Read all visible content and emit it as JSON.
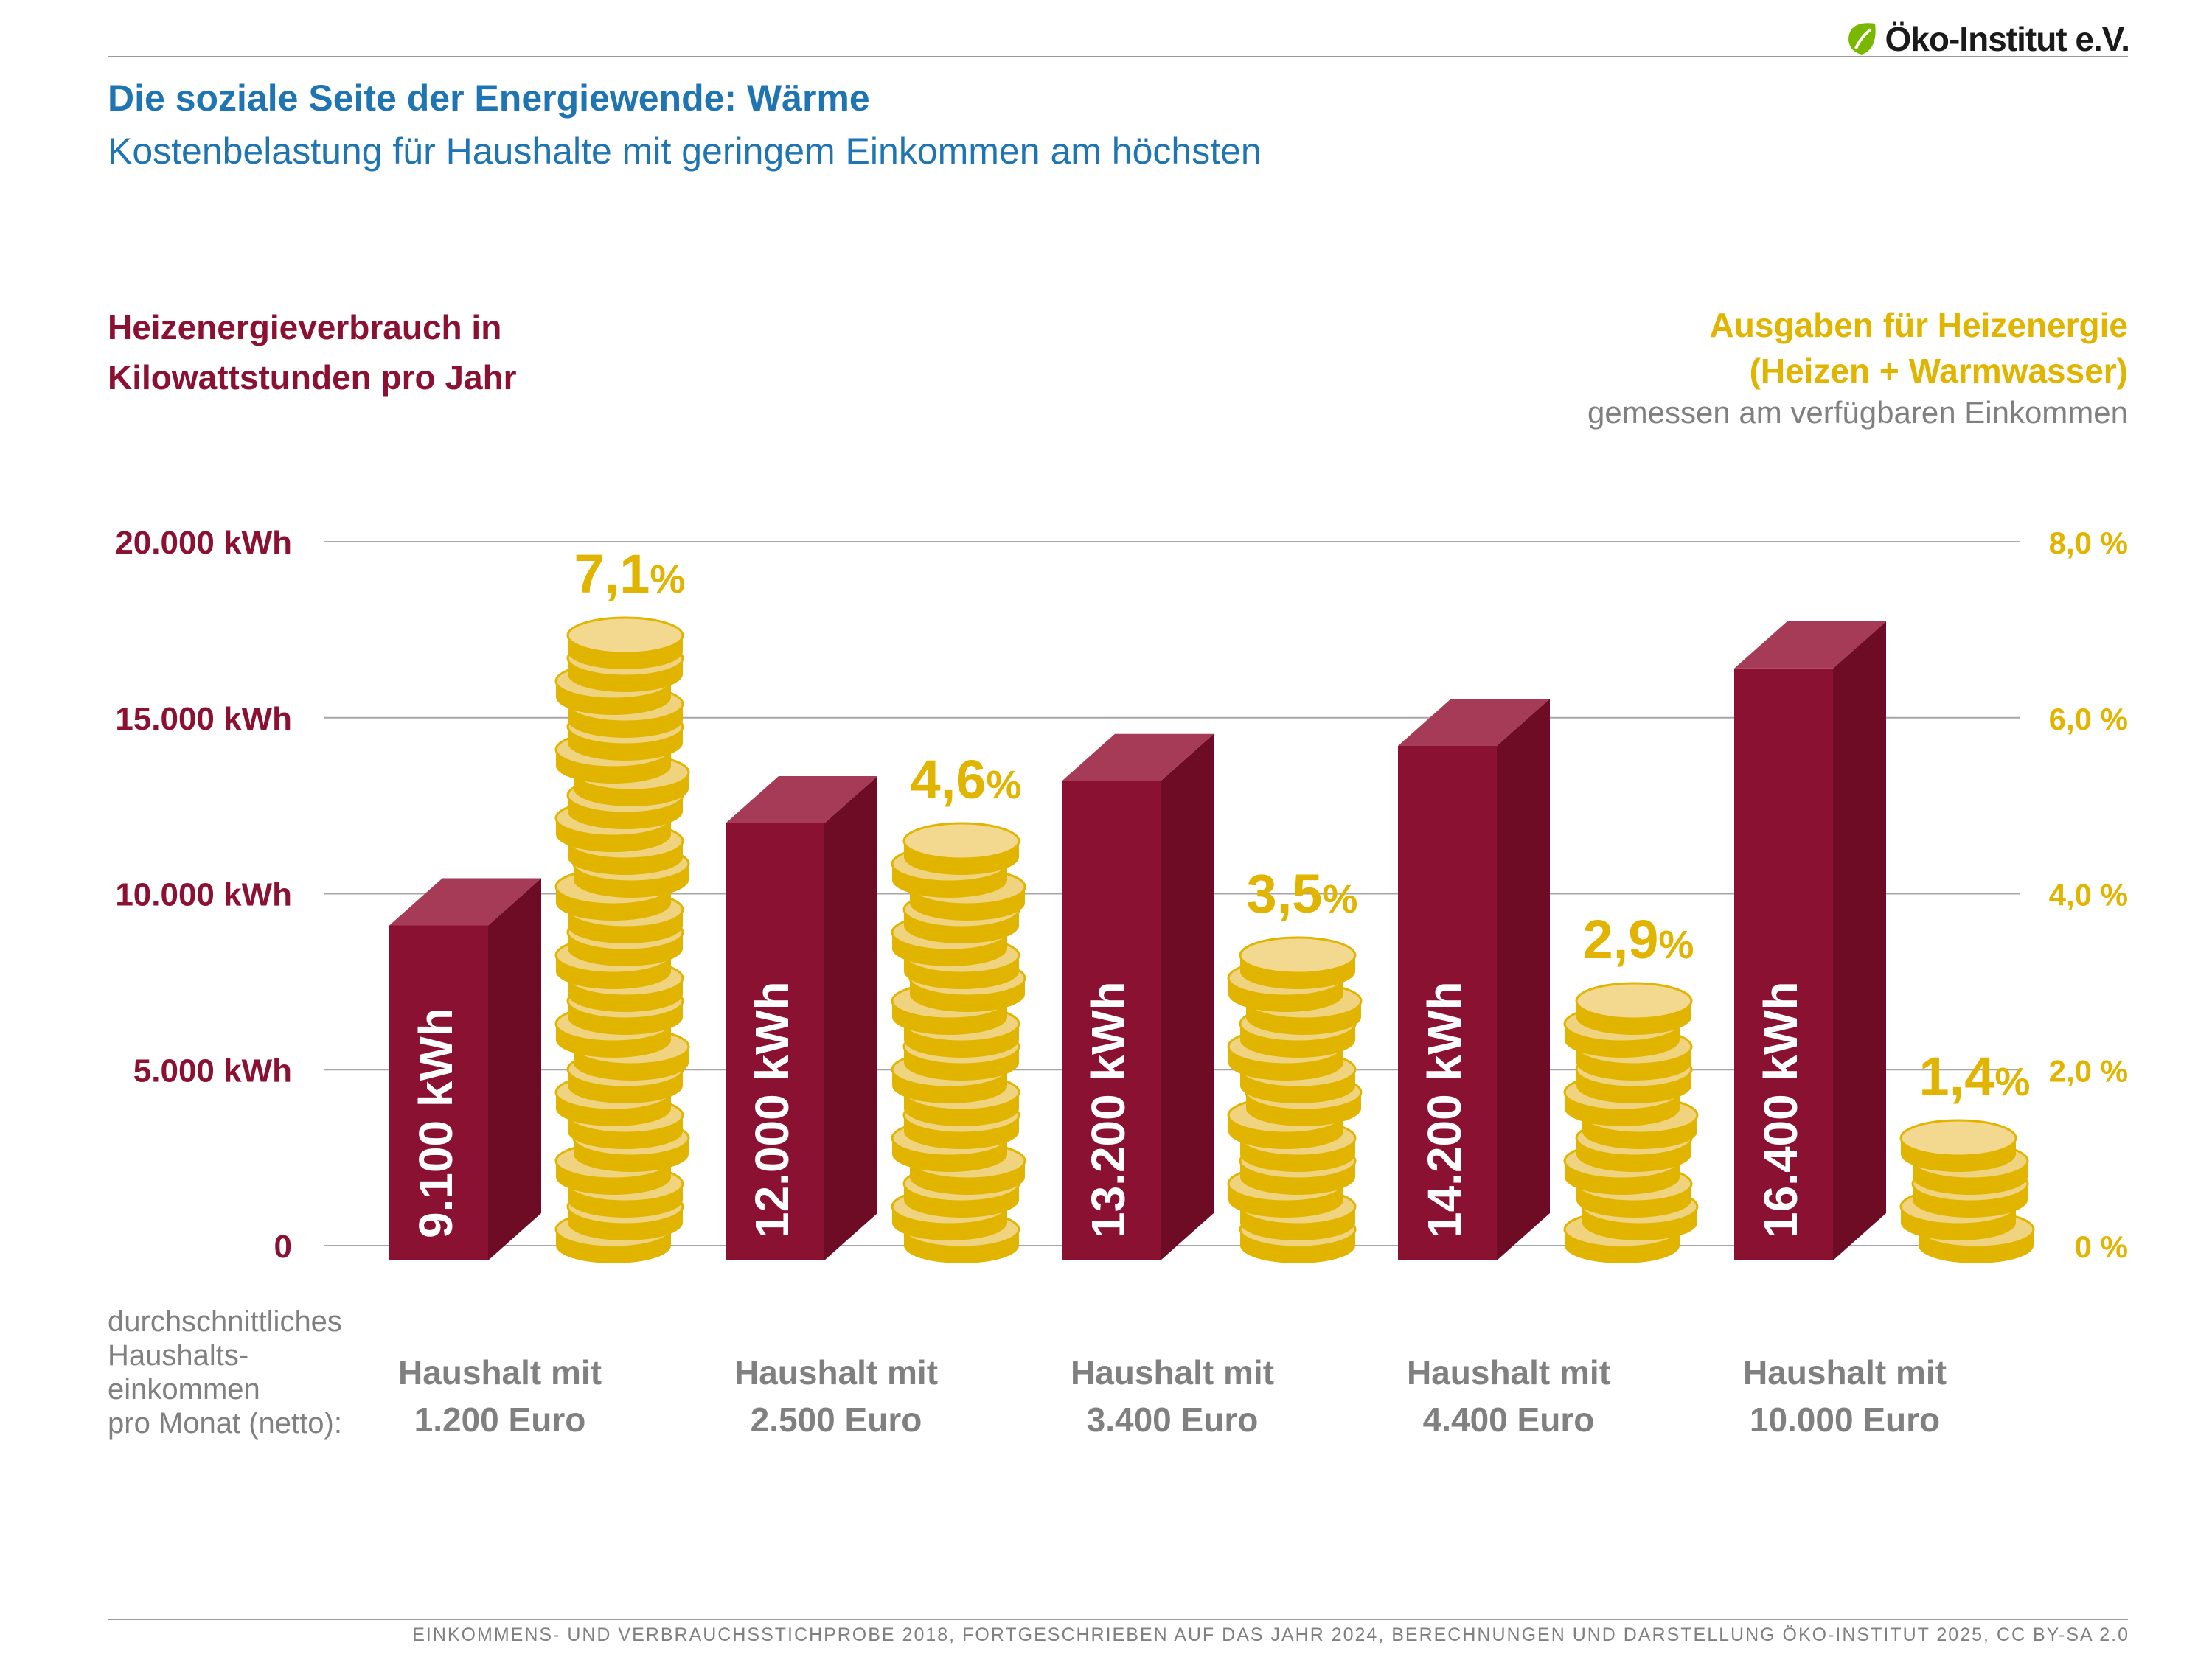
{
  "brand": {
    "name": "Öko-Institut e.V.",
    "leaf_color": "#7ab800"
  },
  "header": {
    "title": "Die soziale Seite der Energiewende: Wärme",
    "subtitle": "Kostenbelastung für Haushalte mit geringem Einkommen am höchsten"
  },
  "left_axis_title": [
    "Heizenergieverbrauch in",
    "Kilowattstunden pro Jahr"
  ],
  "right_axis_title": [
    "Ausgaben für Heizenergie",
    "(Heizen + Warmwasser)"
  ],
  "right_axis_subtitle": "gemessen am verfügbaren Einkommen",
  "income_caption": [
    "durchschnittliches",
    "Haushalts-",
    "einkommen",
    "pro Monat (netto):"
  ],
  "source": "EINKOMMENS- UND VERBRAUCHSSTICHPROBE 2018, FORTGESCHRIEBEN AUF DAS JAHR 2024, BERECHNUNGEN UND DARSTELLUNG ÖKO-INSTITUT 2025, CC BY-SA 2.0",
  "colors": {
    "bar": "#8a1132",
    "coin": "#e1b400",
    "title": "#1f74b2",
    "gray": "#808080"
  },
  "chart_data": {
    "type": "bar",
    "categories": [
      [
        "Haushalt mit",
        "1.200 Euro"
      ],
      [
        "Haushalt mit",
        "2.500 Euro"
      ],
      [
        "Haushalt mit",
        "3.400 Euro"
      ],
      [
        "Haushalt mit",
        "4.400 Euro"
      ],
      [
        "Haushalt mit",
        "10.000 Euro"
      ]
    ],
    "series": [
      {
        "axis": "left",
        "values": [
          9100,
          12000,
          13200,
          14200,
          16400
        ],
        "labels": [
          "9.100 kWh",
          "12.000 kWh",
          "13.200 kWh",
          "14.200 kWh",
          "16.400 kWh"
        ]
      },
      {
        "axis": "right",
        "values": [
          7.1,
          4.6,
          3.5,
          2.9,
          1.4
        ],
        "labels": [
          "7,1",
          "4,6",
          "3,5",
          "2,9",
          "1,4"
        ],
        "label_suffix": "%"
      }
    ],
    "left_axis": {
      "ylim": [
        0,
        20000
      ],
      "ticks": [
        0,
        5000,
        10000,
        15000,
        20000
      ],
      "tick_labels": [
        "0",
        "5.000 kWh",
        "10.000 kWh",
        "15.000 kWh",
        "20.000 kWh"
      ]
    },
    "right_axis": {
      "ylim": [
        0,
        8
      ],
      "ticks": [
        0,
        2,
        4,
        6,
        8
      ],
      "tick_labels": [
        "0 %",
        "2,0 %",
        "4,0 %",
        "6,0 %",
        "8,0 %"
      ]
    },
    "grid": true
  }
}
